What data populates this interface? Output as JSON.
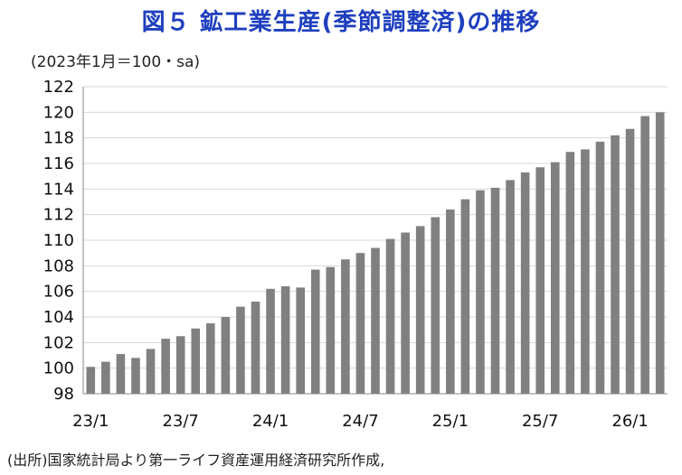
{
  "title": "図５ 鉱工業生産(季節調整済)の推移",
  "unit_label": "(2023年1月＝100・sa)",
  "source": "(出所)国家統計局より第一ライフ資産運用経済研究所作成,",
  "chart_data": {
    "type": "bar",
    "title": "図５ 鉱工業生産(季節調整済)の推移",
    "ylabel": "(2023年1月＝100・sa)",
    "xlabel": "",
    "ylim": [
      98,
      122
    ],
    "yticks": [
      98,
      100,
      102,
      104,
      106,
      108,
      110,
      112,
      114,
      116,
      118,
      120,
      122
    ],
    "x_tick_labels": [
      {
        "index": 0,
        "label": "23/1"
      },
      {
        "index": 6,
        "label": "23/7"
      },
      {
        "index": 12,
        "label": "24/1"
      },
      {
        "index": 18,
        "label": "24/7"
      },
      {
        "index": 24,
        "label": "25/1"
      },
      {
        "index": 30,
        "label": "25/7"
      },
      {
        "index": 36,
        "label": "26/1"
      }
    ],
    "bar_color": "#808080",
    "grid": "horizontal",
    "categories": [
      "23/1",
      "23/2",
      "23/3",
      "23/4",
      "23/5",
      "23/6",
      "23/7",
      "23/8",
      "23/9",
      "23/10",
      "23/11",
      "23/12",
      "24/1",
      "24/2",
      "24/3",
      "24/4",
      "24/5",
      "24/6",
      "24/7",
      "24/8",
      "24/9",
      "24/10",
      "24/11",
      "24/12",
      "25/1",
      "25/2",
      "25/3",
      "25/4",
      "25/5",
      "25/6",
      "25/7",
      "25/8",
      "25/9",
      "25/10",
      "25/11",
      "25/12",
      "26/1",
      "26/2",
      "26/3"
    ],
    "values": [
      100.1,
      100.5,
      101.1,
      100.8,
      101.5,
      102.3,
      102.5,
      103.1,
      103.5,
      104.0,
      104.8,
      105.2,
      106.2,
      106.4,
      106.3,
      107.7,
      107.9,
      108.5,
      109.0,
      109.4,
      110.1,
      110.6,
      111.1,
      111.8,
      112.4,
      113.2,
      113.9,
      114.1,
      114.7,
      115.3,
      115.7,
      116.1,
      116.9,
      117.1,
      117.7,
      118.2,
      118.7,
      119.7,
      120.0
    ]
  }
}
